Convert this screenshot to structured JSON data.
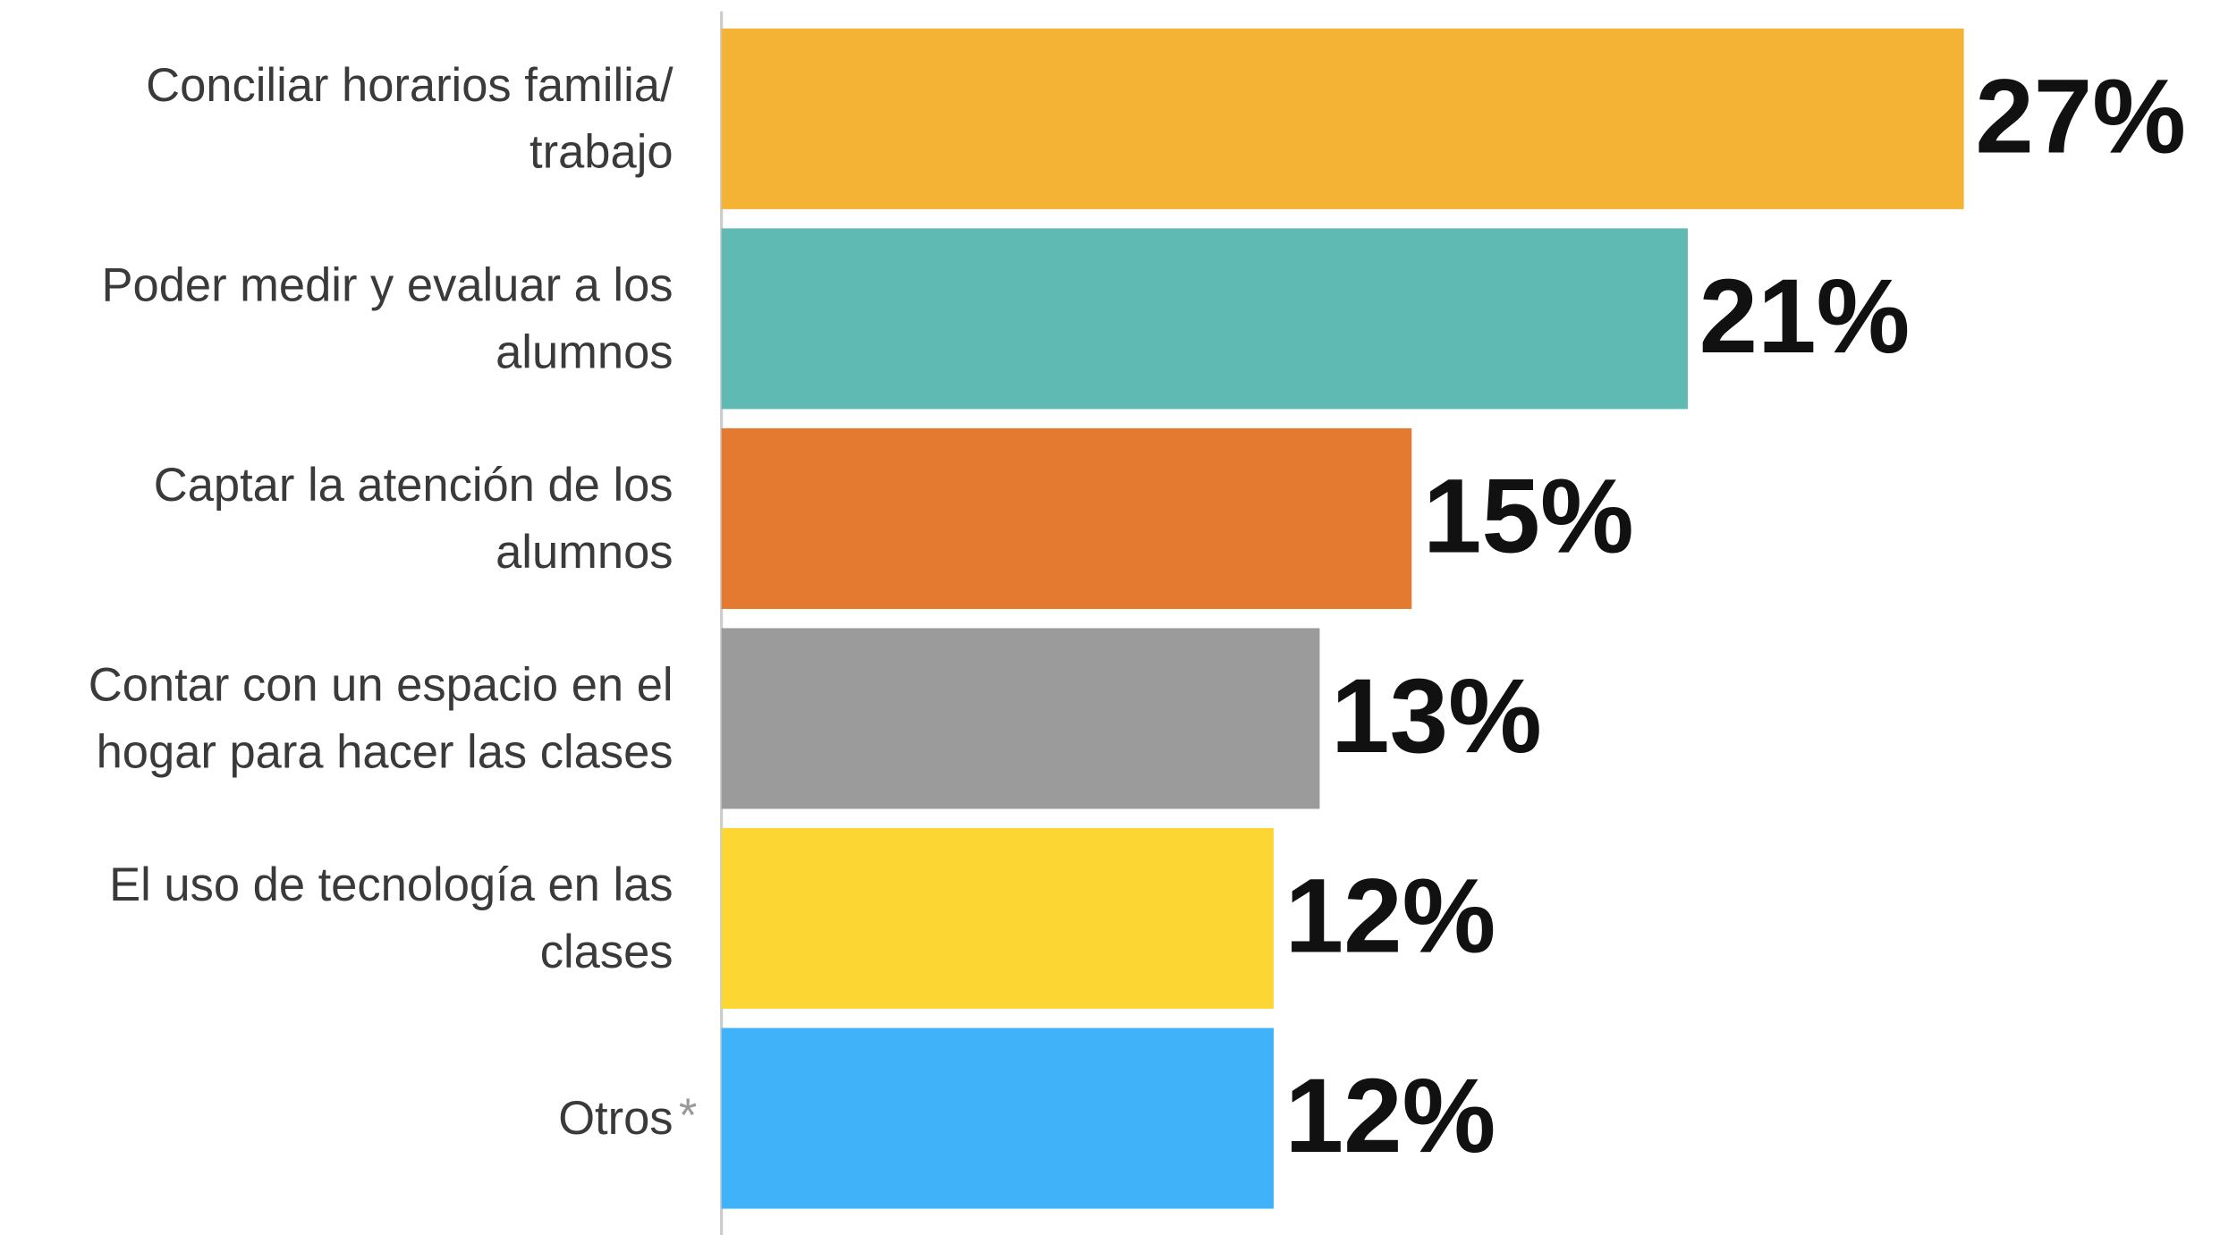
{
  "chart_data": {
    "type": "bar",
    "orientation": "horizontal",
    "categories": [
      "Conciliar horarios familia/\ntrabajo",
      "Poder medir y evaluar a los\nalumnos",
      "Captar la atención de los\nalumnos",
      "Contar con un espacio en el\nhogar para hacer las clases",
      "El uso de tecnología en las\nclases",
      "Otros"
    ],
    "values": [
      27,
      21,
      15,
      13,
      12,
      12
    ],
    "value_labels": [
      "27%",
      "21%",
      "15%",
      "13%",
      "12%",
      "12%"
    ],
    "colors": [
      "#f5b335",
      "#5fbab3",
      "#e47a30",
      "#9b9b9b",
      "#fcd733",
      "#3fb2f9"
    ],
    "xlim": [
      0,
      27
    ],
    "footnote_marker": "*"
  }
}
